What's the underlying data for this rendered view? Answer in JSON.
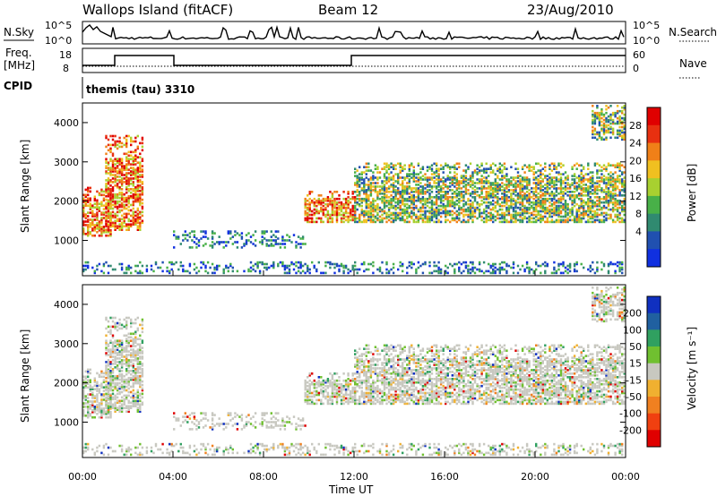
{
  "header": {
    "station": "Wallops Island (fitACF)",
    "beam": "Beam 12",
    "date": "23/Aug/2010"
  },
  "panels": {
    "nsky": {
      "label": "N.Sky",
      "left_ticks": [
        "10^5",
        "10^0"
      ],
      "right_ticks": [
        "10^5",
        "10^0"
      ],
      "right_label": "N.Search",
      "right_label_line": "dotted"
    },
    "freq": {
      "label_line1": "Freq.",
      "label_line2": "[MHz]",
      "left_ticks": [
        "18",
        "8"
      ],
      "right_ticks": [
        "60",
        "0"
      ],
      "right_label": "Nave",
      "right_label_line": "dotted"
    },
    "cpid": {
      "label": "CPID",
      "text": "themis (tau) 3310"
    }
  },
  "chart_data": [
    {
      "type": "heatmap",
      "name": "power-panel",
      "ylabel": "Slant Range [km]",
      "ylim": [
        100,
        4500
      ],
      "y_ticks": [
        1000,
        2000,
        3000,
        4000
      ],
      "colorbar": {
        "label": "Power [dB]",
        "ticks": [
          4,
          8,
          12,
          16,
          20,
          24,
          28
        ],
        "colors": [
          "#1030e0",
          "#2050b0",
          "#308a70",
          "#48b048",
          "#a8d030",
          "#f0c020",
          "#f08018",
          "#e83010",
          "#e00000"
        ]
      },
      "echo_regions": [
        {
          "x_hours": [
            0.0,
            1.3
          ],
          "range_km": [
            1150,
            2400
          ],
          "power": "strong"
        },
        {
          "x_hours": [
            1.0,
            2.7
          ],
          "range_km": [
            1300,
            3700
          ],
          "power": "strong"
        },
        {
          "x_hours": [
            4.0,
            9.8
          ],
          "range_km": [
            850,
            1300
          ],
          "power": "weak"
        },
        {
          "x_hours": [
            9.8,
            12.0
          ],
          "range_km": [
            1500,
            2300
          ],
          "power": "strong"
        },
        {
          "x_hours": [
            12.0,
            24.0
          ],
          "range_km": [
            1500,
            3000
          ],
          "power": "medium"
        },
        {
          "x_hours": [
            22.5,
            24.0
          ],
          "range_km": [
            3600,
            4500
          ],
          "power": "medium"
        },
        {
          "x_hours": [
            0.0,
            24.0
          ],
          "range_km": [
            200,
            500
          ],
          "power": "weak"
        }
      ]
    },
    {
      "type": "heatmap",
      "name": "velocity-panel",
      "ylabel": "Slant Range [km]",
      "ylim": [
        100,
        4500
      ],
      "y_ticks": [
        1000,
        2000,
        3000,
        4000
      ],
      "x_ticks": [
        "00:00",
        "04:00",
        "08:00",
        "12:00",
        "16:00",
        "20:00",
        "00:00"
      ],
      "xlabel": "Time UT",
      "colorbar": {
        "label": "Velocity [m s⁻¹]",
        "ticks": [
          200,
          100,
          50,
          15,
          -15,
          -50,
          -100,
          -200
        ],
        "colors": [
          "#1030c0",
          "#2060a0",
          "#30a060",
          "#70c030",
          "#c8c8c0",
          "#f0b030",
          "#f08020",
          "#f04010",
          "#e00000"
        ]
      }
    }
  ]
}
